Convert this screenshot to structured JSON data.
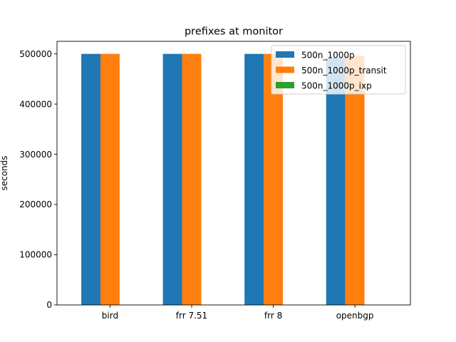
{
  "chart_data": {
    "type": "bar",
    "title": "prefixes at monitor",
    "xlabel": "",
    "ylabel": "seconds",
    "categories": [
      "bird",
      "frr 7.51",
      "frr 8",
      "openbgp"
    ],
    "series": [
      {
        "name": "500n_1000p",
        "color": "#1f77b4",
        "values": [
          500000,
          500000,
          500000,
          492000
        ]
      },
      {
        "name": "500n_1000p_transit",
        "color": "#ff7f0e",
        "values": [
          500000,
          500000,
          500000,
          496000
        ]
      },
      {
        "name": "500n_1000p_ixp",
        "color": "#2ca02c",
        "values": [
          0,
          0,
          0,
          0
        ]
      }
    ],
    "ylim": [
      0,
      525000
    ],
    "yticks": [
      0,
      100000,
      200000,
      300000,
      400000,
      500000
    ],
    "ytick_labels": [
      "0",
      "100000",
      "200000",
      "300000",
      "400000",
      "500000"
    ],
    "legend_position": "top-right",
    "grid": false
  }
}
